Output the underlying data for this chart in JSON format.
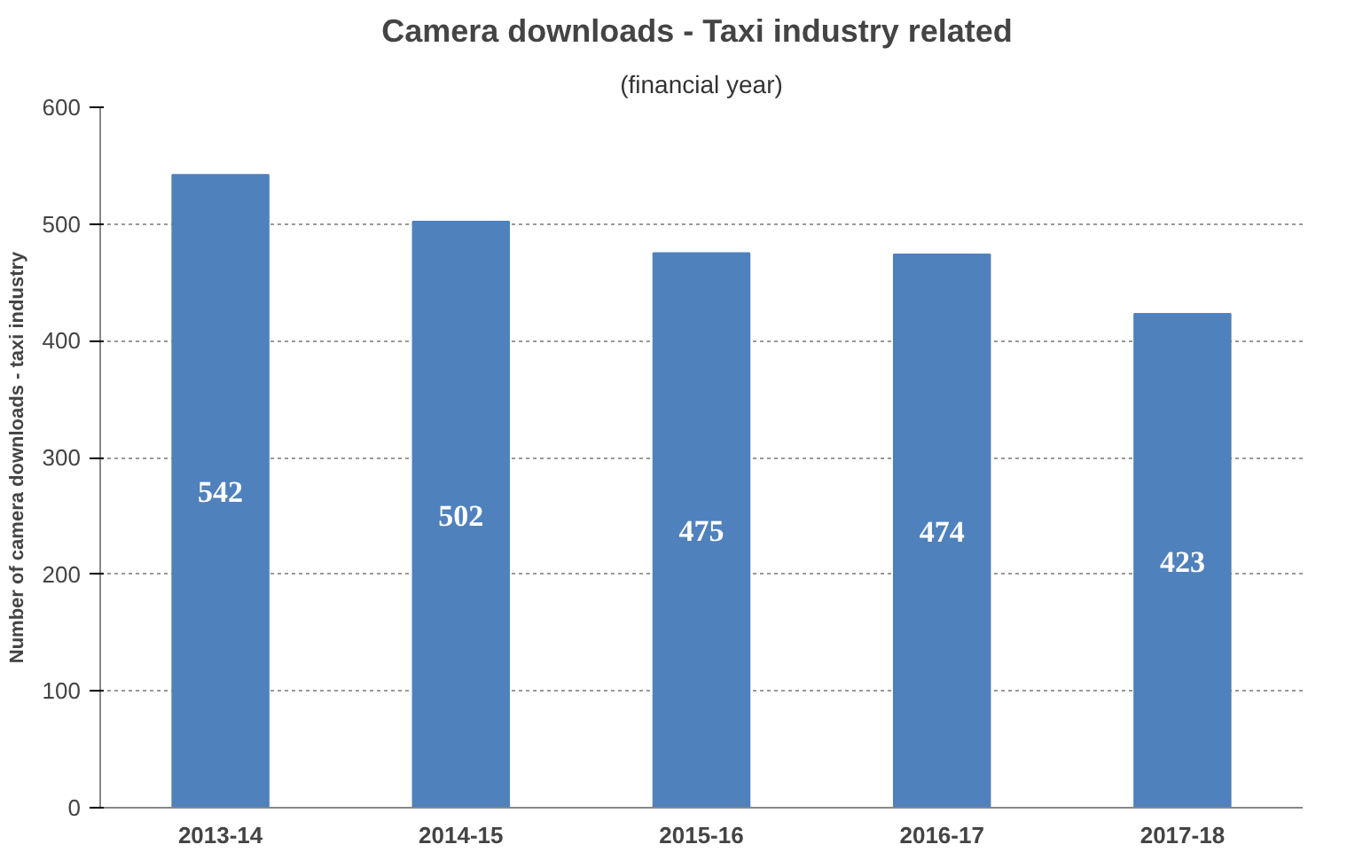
{
  "chart_data": {
    "type": "bar",
    "title": "Camera downloads  - Taxi industry related",
    "subtitle": "(financial year)",
    "ylabel": "Number of camera downloads - taxi industry",
    "categories": [
      "2013-14",
      "2014-15",
      "2015-16",
      "2016-17",
      "2017-18"
    ],
    "values": [
      542,
      502,
      475,
      474,
      423
    ],
    "color": "#4f81bd",
    "ylim": [
      0,
      600
    ],
    "yticks": [
      0,
      100,
      200,
      300,
      400,
      500,
      600
    ],
    "grid": "y",
    "data_labels": true
  }
}
